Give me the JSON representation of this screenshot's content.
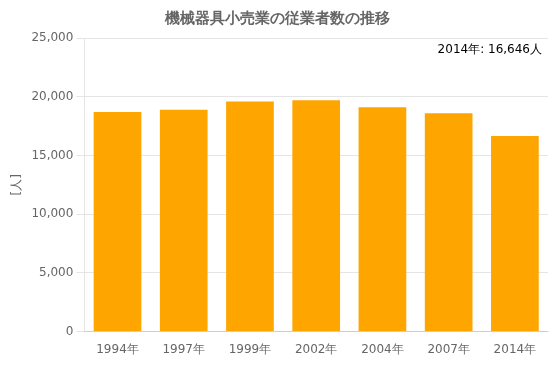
{
  "chart_data": {
    "type": "bar",
    "title": "機械器具小売業の従業者数の推移",
    "ylabel": "[人]",
    "annotation": "2014年: 16,646人",
    "categories": [
      "1994年",
      "1997年",
      "1999年",
      "2002年",
      "2004年",
      "2007年",
      "2014年"
    ],
    "values": [
      18700,
      18900,
      19600,
      19700,
      19100,
      18600,
      16646
    ],
    "color": "#FFA500",
    "ylim": [
      0,
      25000
    ],
    "yticks": [
      0,
      {
        "value": 5000,
        "label": "5,000"
      },
      {
        "value": 10000,
        "label": "10,000"
      },
      {
        "value": 15000,
        "label": "15,000"
      },
      {
        "value": 20000,
        "label": "20,000"
      },
      {
        "value": 25000,
        "label": "25,000"
      }
    ],
    "grid": true
  }
}
